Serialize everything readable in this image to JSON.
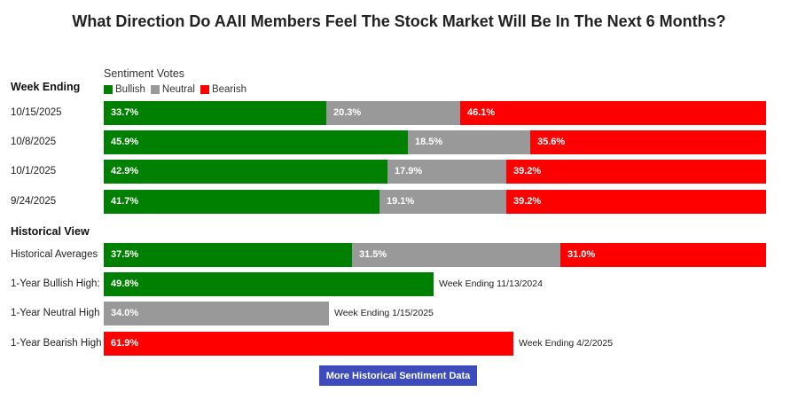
{
  "title": "What Direction Do AAII Members Feel The Stock Market Will Be In The Next 6 Months?",
  "colors": {
    "bullish": "#008000",
    "neutral": "#999999",
    "bearish": "#ff0000",
    "button": "#3d4bbf"
  },
  "chart_data": {
    "type": "bar",
    "stacked": true,
    "orientation": "horizontal",
    "title": "What Direction Do AAII Members Feel The Stock Market Will Be In The Next 6 Months?",
    "legend_title": "Sentiment Votes",
    "legend": [
      "Bullish",
      "Neutral",
      "Bearish"
    ],
    "week_section_label": "Week Ending",
    "weekly": [
      {
        "label": "10/15/2025",
        "bullish": "33.7%",
        "neutral": "20.3%",
        "bearish": "46.1%",
        "values": [
          33.7,
          20.3,
          46.1
        ]
      },
      {
        "label": "10/8/2025",
        "bullish": "45.9%",
        "neutral": "18.5%",
        "bearish": "35.6%",
        "values": [
          45.9,
          18.5,
          35.6
        ]
      },
      {
        "label": "10/1/2025",
        "bullish": "42.9%",
        "neutral": "17.9%",
        "bearish": "39.2%",
        "values": [
          42.9,
          17.9,
          39.2
        ]
      },
      {
        "label": "9/24/2025",
        "bullish": "41.7%",
        "neutral": "19.1%",
        "bearish": "39.2%",
        "values": [
          41.7,
          19.1,
          39.2
        ]
      }
    ],
    "historical_section_label": "Historical View",
    "historical_averages": {
      "label": "Historical Averages",
      "bullish": "37.5%",
      "neutral": "31.5%",
      "bearish": "31.0%",
      "values": [
        37.5,
        31.5,
        31.0
      ]
    },
    "highs": [
      {
        "label": "1-Year Bullish High:",
        "value_text": "49.8%",
        "value": 49.8,
        "series": "bullish",
        "note": "Week Ending 11/13/2024"
      },
      {
        "label": "1-Year Neutral High",
        "value_text": "34.0%",
        "value": 34.0,
        "series": "neutral",
        "note": "Week Ending 1/15/2025"
      },
      {
        "label": "1-Year Bearish High",
        "value_text": "61.9%",
        "value": 61.9,
        "series": "bearish",
        "note": "Week Ending 4/2/2025"
      }
    ]
  },
  "button": {
    "label": "More Historical Sentiment Data"
  }
}
